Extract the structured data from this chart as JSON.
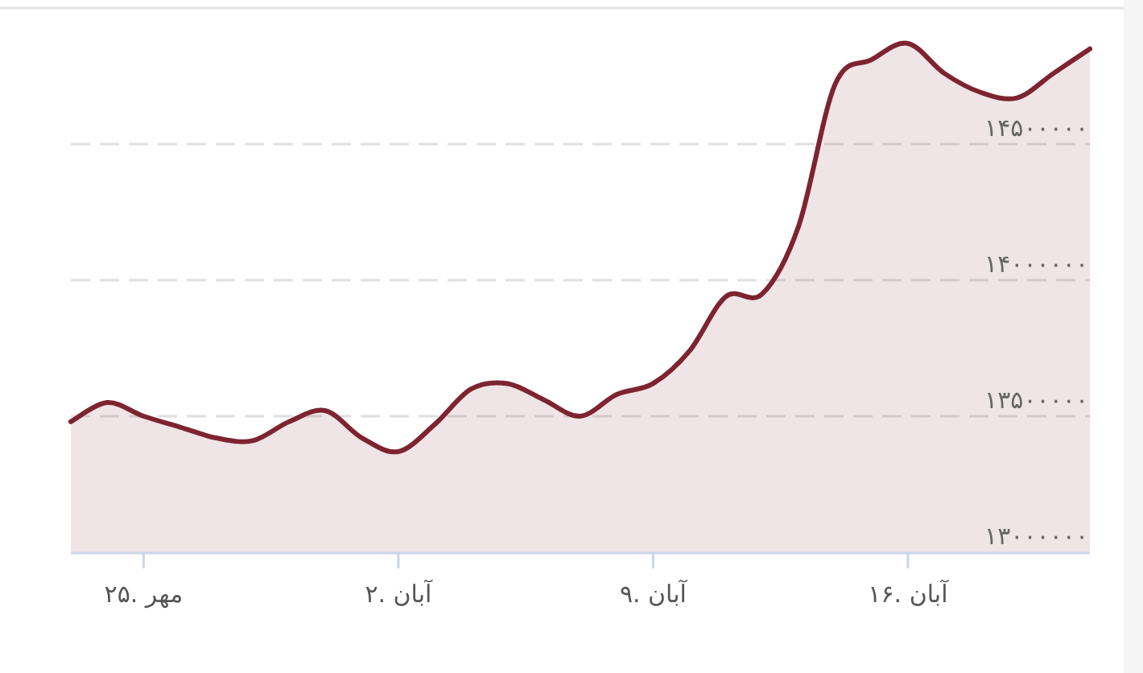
{
  "chart_data": {
    "type": "area",
    "categories": [
      null,
      null,
      "۲۵. مهر",
      null,
      null,
      null,
      null,
      null,
      null,
      "۲. آبان",
      null,
      null,
      null,
      null,
      null,
      null,
      "۹. آبان",
      null,
      null,
      null,
      null,
      null,
      null,
      "۱۶. آبان",
      null,
      null,
      null,
      null,
      null
    ],
    "series": [
      {
        "color": "#7d2430",
        "values": [
          13480000,
          13550000,
          13500000,
          13460000,
          13420000,
          13410000,
          13480000,
          13520000,
          13420000,
          13370000,
          13470000,
          13600000,
          13620000,
          13560000,
          13500000,
          13580000,
          13620000,
          13740000,
          13940000,
          13950000,
          14200000,
          14720000,
          14810000,
          14870000,
          14760000,
          14690000,
          14670000,
          14760000,
          14850000
        ]
      }
    ],
    "ylim": [
      13000000,
      15000000
    ],
    "yticks": [
      {
        "value": 13000000,
        "label": "۱۳۰۰۰۰۰۰"
      },
      {
        "value": 13500000,
        "label": "۱۳۵۰۰۰۰۰"
      },
      {
        "value": 14000000,
        "label": "۱۴۰۰۰۰۰۰"
      },
      {
        "value": 14500000,
        "label": "۱۴۵۰۰۰۰۰"
      }
    ],
    "grid": "y",
    "marker": "none",
    "line_style": "solid"
  }
}
